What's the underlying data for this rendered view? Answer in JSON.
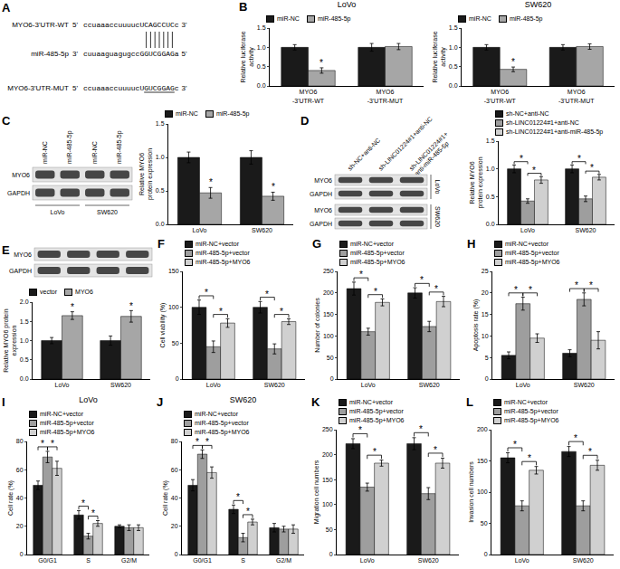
{
  "sequence": {
    "panel": "A",
    "rows": [
      {
        "name": "MYO6-3'UTR-WT",
        "left": "5'",
        "seq": "ccuaaaccuuuucUCAGCCUCc",
        "right": "3'"
      },
      {
        "name": "miR-485-5p",
        "left": "3'",
        "seq": "cuuaaguagugccGGUCGGAGa",
        "right": "5'"
      },
      {
        "name": "MYO6-3'UTR-MUT",
        "left": "5'",
        "seq": "ccuaaaccuuuucUGUCGGAGc",
        "right": "3'",
        "underline": "GUCGGAG"
      }
    ]
  },
  "blots": [
    {
      "panel": "C",
      "lanes": [
        "miR-NC",
        "miR-485-5p",
        "miR-NC",
        "miR-485-5p"
      ],
      "rows": [
        "MYO6",
        "GAPDH"
      ],
      "groups_below": [
        "LoVo",
        "SW620"
      ]
    },
    {
      "panel": "D",
      "lanes": [
        "sh-NC+anti-NC",
        "sh-LINC01224#1+anti-NC",
        "sh-LINC01224#1+\nanti-miR-485-5p"
      ],
      "rows": [
        "MYO6",
        "GAPDH"
      ],
      "groups_right": [
        "LoVo",
        "SW620"
      ]
    },
    {
      "panel": "E",
      "lanes": [
        null,
        null,
        null,
        null
      ],
      "rows": [
        "MYO6",
        "GAPDH"
      ]
    }
  ],
  "chart_data": [
    {
      "panel": "B",
      "type": "bar",
      "title": "LoVo",
      "ylabel": "Relative luciferase\nactivity",
      "categories": [
        "MYO6\n-3'UTR-WT",
        "MYO6\n-3'UTR-MUT"
      ],
      "series": [
        {
          "name": "miR-NC",
          "color": "#1a1a1a",
          "values": [
            1.0,
            1.0
          ],
          "errors": [
            0.07,
            0.1
          ]
        },
        {
          "name": "miR-485-5p",
          "color": "#a6a6a6",
          "values": [
            0.4,
            1.02
          ],
          "errors": [
            0.07,
            0.08
          ]
        }
      ],
      "ylim": [
        0,
        1.5
      ],
      "yticks": [
        {
          "value": 0,
          "label": "0.0"
        },
        {
          "value": 0.5,
          "label": "0.5"
        },
        {
          "value": 1,
          "label": "1.0"
        },
        {
          "value": 1.5,
          "label": "1.5"
        }
      ],
      "legend": "top",
      "annotations": [
        {
          "text": "*",
          "category": 0,
          "series": 1
        }
      ]
    },
    {
      "type": "bar",
      "title": "SW620",
      "ylabel": "Relative luciferase\nactivity",
      "categories": [
        "MYO6\n-3'UTR-WT",
        "MYO6\n-3'UTR-MUT"
      ],
      "series": [
        {
          "name": "miR-NC",
          "color": "#1a1a1a",
          "values": [
            1.0,
            1.0
          ],
          "errors": [
            0.07,
            0.07
          ]
        },
        {
          "name": "miR-485-5p",
          "color": "#a6a6a6",
          "values": [
            0.43,
            1.02
          ],
          "errors": [
            0.06,
            0.07
          ]
        }
      ],
      "ylim": [
        0,
        1.5
      ],
      "yticks": [
        {
          "value": 0,
          "label": "0.0"
        },
        {
          "value": 0.5,
          "label": "0.5"
        },
        {
          "value": 1,
          "label": "1.0"
        },
        {
          "value": 1.5,
          "label": "1.5"
        }
      ],
      "legend": "top",
      "annotations": [
        {
          "text": "*",
          "category": 0,
          "series": 1
        }
      ]
    },
    {
      "type": "bar",
      "ylabel": "Relative MYO6\nprotein expression",
      "categories": [
        "LoVo",
        "SW620"
      ],
      "series": [
        {
          "name": "miR-NC",
          "color": "#1a1a1a",
          "values": [
            1.0,
            1.0
          ],
          "errors": [
            0.08,
            0.1
          ]
        },
        {
          "name": "miR-485-5p",
          "color": "#a6a6a6",
          "values": [
            0.47,
            0.42
          ],
          "errors": [
            0.08,
            0.06
          ]
        }
      ],
      "ylim": [
        0,
        1.5
      ],
      "yticks": [
        {
          "value": 0,
          "label": "0.0"
        },
        {
          "value": 0.5,
          "label": "0.5"
        },
        {
          "value": 1,
          "label": "1.0"
        },
        {
          "value": 1.5,
          "label": "1.5"
        }
      ],
      "legend": "top",
      "annotations": [
        {
          "text": "*",
          "category": 0,
          "series": 1
        },
        {
          "text": "*",
          "category": 1,
          "series": 1
        }
      ]
    },
    {
      "type": "bar",
      "ylabel": "Relative MYO6\nprotein expression",
      "categories": [
        "LoVo",
        "SW620"
      ],
      "series": [
        {
          "name": "sh-NC+anti-NC",
          "color": "#1a1a1a",
          "values": [
            1.0,
            1.0
          ],
          "errors": [
            0.07,
            0.07
          ]
        },
        {
          "name": "sh-LINC01224#1+anti-NC",
          "color": "#9e9e9e",
          "values": [
            0.42,
            0.46
          ],
          "errors": [
            0.04,
            0.05
          ]
        },
        {
          "name": "sh-LINC01224#1+anti-miR-485-5p",
          "color": "#d0d0d0",
          "values": [
            0.8,
            0.85
          ],
          "errors": [
            0.06,
            0.05
          ]
        }
      ],
      "ylim": [
        0,
        1.5
      ],
      "yticks": [
        {
          "value": 0,
          "label": "0.0"
        },
        {
          "value": 0.5,
          "label": "0.5"
        },
        {
          "value": 1,
          "label": "1.0"
        },
        {
          "value": 1.5,
          "label": "1.5"
        }
      ],
      "legend": "top",
      "brackets": [
        {
          "text": "*",
          "category": 0,
          "series": [
            0,
            1
          ]
        },
        {
          "text": "*",
          "category": 0,
          "series": [
            1,
            2
          ]
        },
        {
          "text": "*",
          "category": 1,
          "series": [
            0,
            1
          ]
        },
        {
          "text": "*",
          "category": 1,
          "series": [
            1,
            2
          ]
        }
      ]
    },
    {
      "type": "bar",
      "ylabel": "Relative MYO6 protein\nexpression",
      "categories": [
        "LoVo",
        "SW620"
      ],
      "series": [
        {
          "name": "vector",
          "color": "#1a1a1a",
          "values": [
            1.0,
            1.0
          ],
          "errors": [
            0.08,
            0.12
          ]
        },
        {
          "name": "MYO6",
          "color": "#a6a6a6",
          "values": [
            1.65,
            1.63
          ],
          "errors": [
            0.1,
            0.15
          ]
        }
      ],
      "ylim": [
        0,
        2
      ],
      "yticks": [
        {
          "value": 0,
          "label": "0.0"
        },
        {
          "value": 0.5,
          "label": "0.5"
        },
        {
          "value": 1,
          "label": "1.0"
        },
        {
          "value": 1.5,
          "label": "1.5"
        },
        {
          "value": 2,
          "label": "2.0"
        }
      ],
      "legend": "top",
      "annotations": [
        {
          "text": "*",
          "category": 0,
          "series": 1
        },
        {
          "text": "*",
          "category": 1,
          "series": 1
        }
      ]
    },
    {
      "panel": "F",
      "type": "bar",
      "ylabel": "Cell viability (%)",
      "categories": [
        "LoVo",
        "SW620"
      ],
      "series": [
        {
          "name": "miR-NC+vector",
          "color": "#1a1a1a",
          "values": [
            100,
            100
          ],
          "errors": [
            10,
            8
          ]
        },
        {
          "name": "miR-485-5p+vector",
          "color": "#9e9e9e",
          "values": [
            45,
            42
          ],
          "errors": [
            8,
            7
          ]
        },
        {
          "name": "miR-485-5p+MYO6",
          "color": "#d0d0d0",
          "values": [
            78,
            80
          ],
          "errors": [
            6,
            4
          ]
        }
      ],
      "ylim": [
        0,
        150
      ],
      "yticks": [
        0,
        50,
        100,
        150
      ],
      "legend": "top",
      "brackets": [
        {
          "text": "*",
          "category": 0,
          "series": [
            0,
            1
          ]
        },
        {
          "text": "*",
          "category": 0,
          "series": [
            1,
            2
          ]
        },
        {
          "text": "*",
          "category": 1,
          "series": [
            0,
            1
          ]
        },
        {
          "text": "*",
          "category": 1,
          "series": [
            1,
            2
          ]
        }
      ]
    },
    {
      "panel": "G",
      "type": "bar",
      "ylabel": "Number of colonies",
      "categories": [
        "LoVo",
        "SW620"
      ],
      "series": [
        {
          "name": "miR-NC+vector",
          "color": "#1a1a1a",
          "values": [
            210,
            200
          ],
          "errors": [
            15,
            12
          ]
        },
        {
          "name": "miR-485-5p+vector",
          "color": "#9e9e9e",
          "values": [
            110,
            122
          ],
          "errors": [
            8,
            12
          ]
        },
        {
          "name": "miR-485-5p+MYO6",
          "color": "#d0d0d0",
          "values": [
            178,
            180
          ],
          "errors": [
            8,
            12
          ]
        }
      ],
      "ylim": [
        0,
        250
      ],
      "yticks": [
        0,
        50,
        100,
        150,
        200,
        250
      ],
      "legend": "top",
      "brackets": [
        {
          "text": "*",
          "category": 0,
          "series": [
            0,
            1
          ]
        },
        {
          "text": "*",
          "category": 0,
          "series": [
            1,
            2
          ]
        },
        {
          "text": "*",
          "category": 1,
          "series": [
            0,
            1
          ]
        },
        {
          "text": "*",
          "category": 1,
          "series": [
            1,
            2
          ]
        }
      ]
    },
    {
      "panel": "H",
      "type": "bar",
      "ylabel": "Apoptosis rate (%)",
      "categories": [
        "LoVo",
        "SW620"
      ],
      "series": [
        {
          "name": "miR-NC+vector",
          "color": "#1a1a1a",
          "values": [
            5.5,
            6
          ],
          "errors": [
            0.8,
            0.8
          ]
        },
        {
          "name": "miR-485-5p+vector",
          "color": "#9e9e9e",
          "values": [
            17.5,
            18.5
          ],
          "errors": [
            1.5,
            1.5
          ]
        },
        {
          "name": "miR-485-5p+MYO6",
          "color": "#d0d0d0",
          "values": [
            9.5,
            9
          ],
          "errors": [
            1,
            2
          ]
        }
      ],
      "ylim": [
        0,
        25
      ],
      "yticks": [
        0,
        5,
        10,
        15,
        20,
        25
      ],
      "legend": "top",
      "brackets": [
        {
          "text": "*",
          "category": 0,
          "series": [
            0,
            1
          ]
        },
        {
          "text": "*",
          "category": 0,
          "series": [
            1,
            2
          ]
        },
        {
          "text": "*",
          "category": 1,
          "series": [
            0,
            1
          ]
        },
        {
          "text": "*",
          "category": 1,
          "series": [
            1,
            2
          ]
        }
      ]
    },
    {
      "panel": "I",
      "type": "bar",
      "title": "LoVo",
      "ylabel": "Cell rate (%)",
      "categories": [
        "G0/G1",
        "S",
        "G2/M"
      ],
      "series": [
        {
          "name": "miR-NC+vector",
          "color": "#1a1a1a",
          "values": [
            49,
            28,
            20
          ],
          "errors": [
            3,
            3,
            1
          ]
        },
        {
          "name": "miR-485-5p+vector",
          "color": "#9e9e9e",
          "values": [
            69,
            13,
            19
          ],
          "errors": [
            4,
            2,
            2
          ]
        },
        {
          "name": "miR-485-5p+MYO6",
          "color": "#d0d0d0",
          "values": [
            61,
            22,
            19
          ],
          "errors": [
            5,
            2,
            2
          ]
        }
      ],
      "ylim": [
        0,
        80
      ],
      "yticks": [
        0,
        20,
        40,
        60,
        80
      ],
      "legend": "top",
      "brackets": [
        {
          "text": "*",
          "category": 0,
          "series": [
            0,
            1
          ]
        },
        {
          "text": "*",
          "category": 0,
          "series": [
            1,
            2
          ]
        },
        {
          "text": "*",
          "category": 1,
          "series": [
            0,
            1
          ]
        },
        {
          "text": "*",
          "category": 1,
          "series": [
            1,
            2
          ]
        }
      ]
    },
    {
      "panel": "J",
      "type": "bar",
      "title": "SW620",
      "ylabel": "Cell rate (%)",
      "categories": [
        "G0/G1",
        "S",
        "G2/M"
      ],
      "series": [
        {
          "name": "miR-NC+vector",
          "color": "#1a1a1a",
          "values": [
            49,
            32,
            19
          ],
          "errors": [
            4,
            3,
            3
          ]
        },
        {
          "name": "miR-485-5p+vector",
          "color": "#9e9e9e",
          "values": [
            71,
            12,
            18
          ],
          "errors": [
            3,
            3,
            2
          ]
        },
        {
          "name": "miR-485-5p+MYO6",
          "color": "#d0d0d0",
          "values": [
            58,
            23,
            18
          ],
          "errors": [
            4,
            2,
            3
          ]
        }
      ],
      "ylim": [
        0,
        80
      ],
      "yticks": [
        0,
        20,
        40,
        60,
        80
      ],
      "legend": "top",
      "brackets": [
        {
          "text": "*",
          "category": 0,
          "series": [
            0,
            1
          ]
        },
        {
          "text": "*",
          "category": 0,
          "series": [
            1,
            2
          ]
        },
        {
          "text": "*",
          "category": 1,
          "series": [
            0,
            1
          ]
        },
        {
          "text": "*",
          "category": 1,
          "series": [
            1,
            2
          ]
        }
      ]
    },
    {
      "panel": "K",
      "type": "bar",
      "ylabel": "Migration cell numbers",
      "categories": [
        "LoVo",
        "SW620"
      ],
      "series": [
        {
          "name": "miR-NC+vector",
          "color": "#1a1a1a",
          "values": [
            222,
            222
          ],
          "errors": [
            10,
            12
          ]
        },
        {
          "name": "miR-485-5p+vector",
          "color": "#9e9e9e",
          "values": [
            135,
            122
          ],
          "errors": [
            8,
            12
          ]
        },
        {
          "name": "miR-485-5p+MYO6",
          "color": "#d0d0d0",
          "values": [
            183,
            183
          ],
          "errors": [
            6,
            10
          ]
        }
      ],
      "ylim": [
        0,
        250
      ],
      "yticks": [
        0,
        50,
        100,
        150,
        200,
        250
      ],
      "legend": "top",
      "brackets": [
        {
          "text": "*",
          "category": 0,
          "series": [
            0,
            1
          ]
        },
        {
          "text": "*",
          "category": 0,
          "series": [
            1,
            2
          ]
        },
        {
          "text": "*",
          "category": 1,
          "series": [
            0,
            1
          ]
        },
        {
          "text": "*",
          "category": 1,
          "series": [
            1,
            2
          ]
        }
      ]
    },
    {
      "panel": "L",
      "type": "bar",
      "ylabel": "Invasion cell numbers",
      "categories": [
        "LoVo",
        "SW620"
      ],
      "series": [
        {
          "name": "miR-NC+vector",
          "color": "#1a1a1a",
          "values": [
            155,
            165
          ],
          "errors": [
            8,
            8
          ]
        },
        {
          "name": "miR-485-5p+vector",
          "color": "#9e9e9e",
          "values": [
            78,
            78
          ],
          "errors": [
            8,
            8
          ]
        },
        {
          "name": "miR-485-5p+MYO6",
          "color": "#d0d0d0",
          "values": [
            135,
            143
          ],
          "errors": [
            6,
            8
          ]
        }
      ],
      "ylim": [
        0,
        200
      ],
      "yticks": [
        0,
        50,
        100,
        150,
        200
      ],
      "legend": "top",
      "brackets": [
        {
          "text": "*",
          "category": 0,
          "series": [
            0,
            1
          ]
        },
        {
          "text": "*",
          "category": 0,
          "series": [
            1,
            2
          ]
        },
        {
          "text": "*",
          "category": 1,
          "series": [
            0,
            1
          ]
        },
        {
          "text": "*",
          "category": 1,
          "series": [
            1,
            2
          ]
        }
      ]
    }
  ]
}
